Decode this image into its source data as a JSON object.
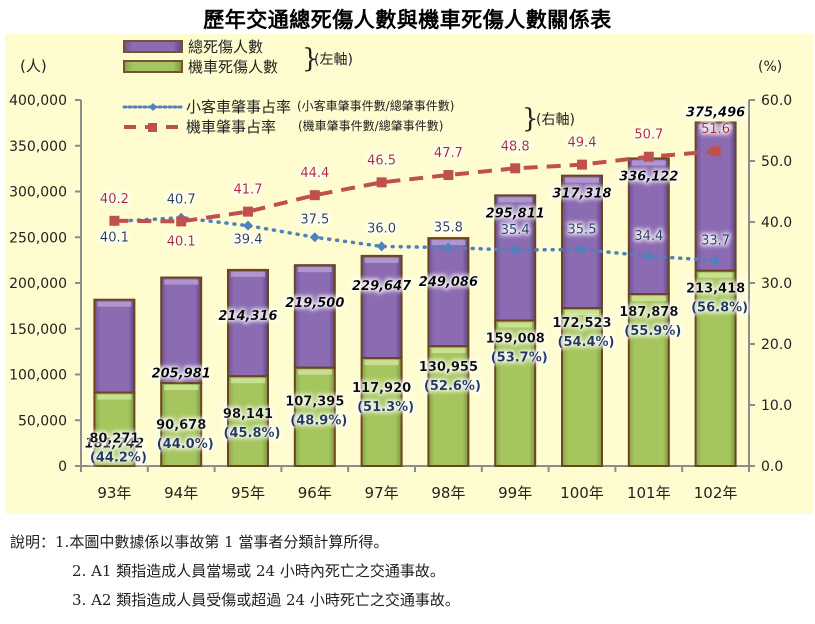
{
  "title": "歷年交通總死傷人數與機車死傷人數關係表",
  "chart_data": {
    "type": "bar",
    "stacked": true,
    "title": "歷年交通總死傷人數與機車死傷人數關係表",
    "categories": [
      "93年",
      "94年",
      "95年",
      "96年",
      "97年",
      "98年",
      "99年",
      "100年",
      "101年",
      "102年"
    ],
    "left_axis": {
      "unit_label": "(人)",
      "range": [
        0,
        400000
      ],
      "ticks": [
        "0",
        "50,000",
        "100,000",
        "150,000",
        "200,000",
        "250,000",
        "300,000",
        "350,000",
        "400,000"
      ],
      "tick_values": [
        0,
        50000,
        100000,
        150000,
        200000,
        250000,
        300000,
        350000,
        400000
      ]
    },
    "right_axis": {
      "unit_label": "(%)",
      "range": [
        0,
        60
      ],
      "ticks": [
        "0.0",
        "10.0",
        "20.0",
        "30.0",
        "40.0",
        "50.0",
        "60.0"
      ],
      "tick_values": [
        0,
        10,
        20,
        30,
        40,
        50,
        60
      ]
    },
    "series": [
      {
        "name": "總死傷人數",
        "axis": "left",
        "kind": "bar",
        "color": "#8b6bb1",
        "values": [
          181742,
          205981,
          214316,
          219500,
          229647,
          249086,
          295811,
          317318,
          336122,
          375496
        ],
        "labels": [
          "181,742",
          "205,981",
          "214,316",
          "219,500",
          "229,647",
          "249,086",
          "295,811",
          "317,318",
          "336,122",
          "375,496"
        ]
      },
      {
        "name": "機車死傷人數",
        "axis": "left",
        "kind": "bar",
        "color": "#a5c55e",
        "values": [
          80271,
          90678,
          98141,
          107395,
          117920,
          130955,
          159008,
          172523,
          187878,
          213418
        ],
        "labels": [
          "80,271",
          "90,678",
          "98,141",
          "107,395",
          "117,920",
          "130,955",
          "159,008",
          "172,523",
          "187,878",
          "213,418"
        ],
        "pct_labels": [
          "(44.2%)",
          "(44.0%)",
          "(45.8%)",
          "(48.9%)",
          "(51.3%)",
          "(52.6%)",
          "(53.7%)",
          "(54.4%)",
          "(55.9%)",
          "(56.8%)"
        ]
      },
      {
        "name": "小客車肇事占率",
        "axis": "right",
        "kind": "line",
        "style": "dotted",
        "color": "#4f81bd",
        "values": [
          40.1,
          40.7,
          39.4,
          37.5,
          36.0,
          35.8,
          35.4,
          35.5,
          34.4,
          33.7
        ],
        "labels": [
          "40.1",
          "40.7",
          "39.4",
          "37.5",
          "36.0",
          "35.8",
          "35.4",
          "35.5",
          "34.4",
          "33.7"
        ]
      },
      {
        "name": "機車肇事占率",
        "axis": "right",
        "kind": "line",
        "style": "dashed",
        "color": "#c0504d",
        "values": [
          40.2,
          40.1,
          41.7,
          44.4,
          46.5,
          47.7,
          48.8,
          49.4,
          50.7,
          51.6
        ],
        "labels": [
          "40.2",
          "40.1",
          "41.7",
          "44.4",
          "46.5",
          "47.7",
          "48.8",
          "49.4",
          "50.7",
          "51.6"
        ]
      }
    ],
    "legend": {
      "placement": "top-left",
      "items": [
        {
          "label": "總死傷人數"
        },
        {
          "label": "機車死傷人數"
        },
        {
          "label": "小客車肇事占率",
          "note": "(小客車肇事件數/總肇事件數)"
        },
        {
          "label": "機車肇事占率",
          "note": "(機車肇事件數/總肇事件數)"
        }
      ],
      "left_group_label": "(左軸)",
      "right_group_label": "(右軸)"
    }
  },
  "notes": {
    "prefix": "說明：",
    "lines": [
      "1.本圖中數據係以事故第 1 當事者分類計算所得。",
      "2. A1 類指造成人員當場或 24 小時內死亡之交通事故。",
      "3. A2 類指造成人員受傷或超過 24 小時死亡之交通事故。"
    ]
  }
}
